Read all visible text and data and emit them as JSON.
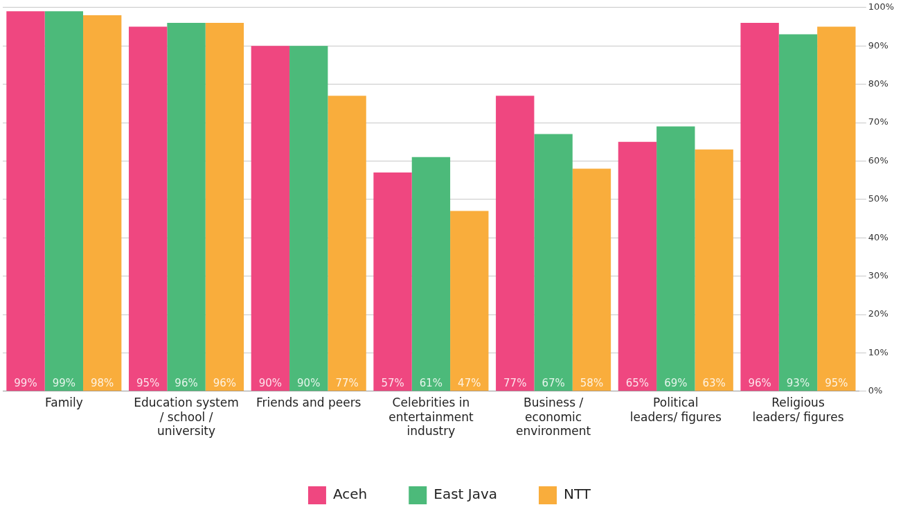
{
  "chart_data": {
    "type": "bar",
    "categories": [
      "Family",
      "Education system / school / university",
      "Friends and peers",
      "Celebrities in entertainment industry",
      "Business / economic environment",
      "Political leaders/ figures",
      "Religious leaders/ figures"
    ],
    "series": [
      {
        "name": "Aceh",
        "color": "#ef4780",
        "values": [
          99,
          95,
          90,
          57,
          77,
          65,
          96
        ],
        "value_labels": [
          "99%",
          "95%",
          "90%",
          "57%",
          "77%",
          "65%",
          "96%"
        ]
      },
      {
        "name": "East Java",
        "color": "#4cba7a",
        "values": [
          99,
          96,
          90,
          61,
          67,
          69,
          93
        ],
        "value_labels": [
          "99%",
          "96%",
          "90%",
          "61%",
          "67%",
          "69%",
          "93%"
        ]
      },
      {
        "name": "NTT",
        "color": "#f9ad3c",
        "values": [
          98,
          96,
          77,
          47,
          58,
          63,
          95
        ],
        "value_labels": [
          "98%",
          "96%",
          "77%",
          "47%",
          "58%",
          "63%",
          "95%"
        ]
      }
    ],
    "ylim": [
      0,
      100
    ],
    "yticks": [
      {
        "value": 0,
        "label": "0%"
      },
      {
        "value": 10,
        "label": "10%"
      },
      {
        "value": 20,
        "label": "20%"
      },
      {
        "value": 30,
        "label": "30%"
      },
      {
        "value": 40,
        "label": "40%"
      },
      {
        "value": 50,
        "label": "50%"
      },
      {
        "value": 60,
        "label": "60%"
      },
      {
        "value": 70,
        "label": "70%"
      },
      {
        "value": 80,
        "label": "80%"
      },
      {
        "value": 90,
        "label": "90%"
      },
      {
        "value": 100,
        "label": "100%"
      }
    ],
    "grid": "y",
    "legend": "bottom"
  }
}
